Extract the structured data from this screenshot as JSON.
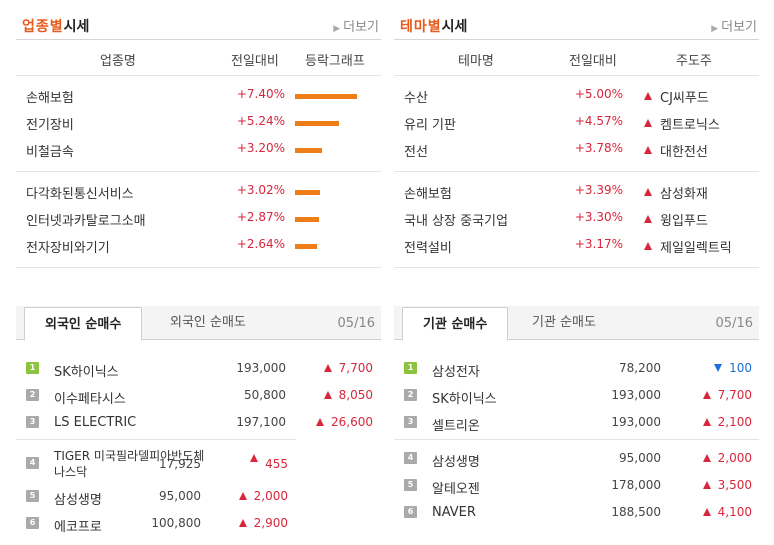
{
  "sector": {
    "title_accent": "업종별",
    "title_rest": "시세",
    "more": "더보기",
    "col_name": "업종명",
    "col_change": "전일대비",
    "col_graph": "등락그래프",
    "rows": [
      {
        "name": "손해보험",
        "change": "+7.40%",
        "pct": 7.4
      },
      {
        "name": "전기장비",
        "change": "+5.24%",
        "pct": 5.24
      },
      {
        "name": "비철금속",
        "change": "+3.20%",
        "pct": 3.2
      },
      {
        "name": "다각화된통신서비스",
        "change": "+3.02%",
        "pct": 3.02
      },
      {
        "name": "인터넷과카탈로그소매",
        "change": "+2.87%",
        "pct": 2.87
      },
      {
        "name": "전자장비와기기",
        "change": "+2.64%",
        "pct": 2.64
      }
    ]
  },
  "theme": {
    "title_accent": "테마별",
    "title_rest": "시세",
    "more": "더보기",
    "col_name": "테마명",
    "col_change": "전일대비",
    "col_leader": "주도주",
    "rows": [
      {
        "name": "수산",
        "change": "+5.00%",
        "leader": "CJ씨푸드"
      },
      {
        "name": "유리 기판",
        "change": "+4.57%",
        "leader": "켐트로닉스"
      },
      {
        "name": "전선",
        "change": "+3.78%",
        "leader": "대한전선"
      },
      {
        "name": "손해보험",
        "change": "+3.39%",
        "leader": "삼성화재"
      },
      {
        "name": "국내 상장 중국기업",
        "change": "+3.30%",
        "leader": "윙입푸드"
      },
      {
        "name": "전력설비",
        "change": "+3.17%",
        "leader": "제일일렉트릭"
      }
    ]
  },
  "foreign": {
    "tab_active": "외국인 순매수",
    "tab_inactive": "외국인 순매도",
    "date": "05/16",
    "rows": [
      {
        "rank": "1",
        "name": "SK하이닉스",
        "price": "193,000",
        "value": "7,700",
        "dir": "up"
      },
      {
        "rank": "2",
        "name": "이수페타시스",
        "price": "50,800",
        "value": "8,050",
        "dir": "up"
      },
      {
        "rank": "3",
        "name": "LS ELECTRIC",
        "price": "197,100",
        "value": "26,600",
        "dir": "up"
      },
      {
        "rank": "4",
        "name": "TIGER 미국필라델피아반도체나스닥",
        "price": "17,925",
        "value": "455",
        "dir": "up"
      },
      {
        "rank": "5",
        "name": "삼성생명",
        "price": "95,000",
        "value": "2,000",
        "dir": "up"
      },
      {
        "rank": "6",
        "name": "에코프로",
        "price": "100,800",
        "value": "2,900",
        "dir": "up"
      }
    ]
  },
  "inst": {
    "tab_active": "기관 순매수",
    "tab_inactive": "기관 순매도",
    "date": "05/16",
    "rows": [
      {
        "rank": "1",
        "name": "삼성전자",
        "price": "78,200",
        "value": "100",
        "dir": "down"
      },
      {
        "rank": "2",
        "name": "SK하이닉스",
        "price": "193,000",
        "value": "7,700",
        "dir": "up"
      },
      {
        "rank": "3",
        "name": "셀트리온",
        "price": "193,000",
        "value": "2,100",
        "dir": "up"
      },
      {
        "rank": "4",
        "name": "삼성생명",
        "price": "95,000",
        "value": "2,000",
        "dir": "up"
      },
      {
        "rank": "5",
        "name": "알테오젠",
        "price": "178,000",
        "value": "3,500",
        "dir": "up"
      },
      {
        "rank": "6",
        "name": "NAVER",
        "price": "188,500",
        "value": "4,100",
        "dir": "up"
      }
    ]
  },
  "colors": {
    "accent": "#e8591a",
    "up": "#d8263c",
    "down": "#1b6fd8",
    "bar": "#f07e16",
    "rank_first": "#8cc341"
  }
}
